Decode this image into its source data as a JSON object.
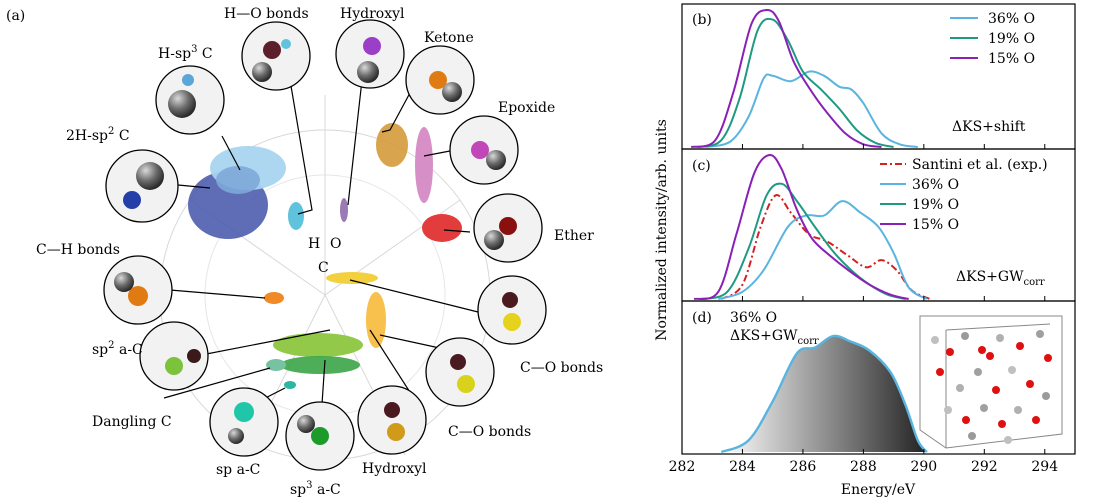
{
  "panel_a": {
    "letter": "(a)",
    "center_labels": {
      "h": "H",
      "o": "O",
      "c": "C"
    },
    "clusters": [
      {
        "name": "H-sp3 C",
        "text": "H-sp",
        "sup": "3",
        "tail": " C",
        "color": "#a9d4ef"
      },
      {
        "name": "2H-sp2 C",
        "text": "2H-sp",
        "sup": "2",
        "tail": " C",
        "color": "#4e5cae"
      },
      {
        "name": "H-O bonds",
        "text": "H—O bonds",
        "color": "#5fc3dd"
      },
      {
        "name": "Hydroxyl",
        "text": "Hydroxyl",
        "color": "#9b7bb5"
      },
      {
        "name": "Ketone",
        "text": "Ketone",
        "color": "#d49a3a"
      },
      {
        "name": "Epoxide",
        "text": "Epoxide",
        "color": "#d58ac4"
      },
      {
        "name": "Ether",
        "text": "Ether",
        "color": "#e03232"
      },
      {
        "name": "C-H bonds",
        "text": "C—H bonds",
        "color": "#f08a26"
      },
      {
        "name": "C-O bonds upper",
        "text": "C—O bonds",
        "color": "#f3d03e"
      },
      {
        "name": "C-O bonds lower",
        "text": "C—O bonds",
        "color": "#f7b93a"
      },
      {
        "name": "Hydroxyl lower",
        "text": "Hydroxyl",
        "color": "#8a4a2a"
      },
      {
        "name": "sp2 a-C",
        "text": "sp",
        "sup": "2",
        "tail": " a-C",
        "color": "#8dc63f"
      },
      {
        "name": "Dangling C",
        "text": "Dangling C",
        "color": "#78c2a4"
      },
      {
        "name": "sp a-C",
        "text": "sp a-C",
        "color": "#2bb8a2"
      },
      {
        "name": "sp3 a-C",
        "text": "sp",
        "sup": "3",
        "tail": " a-C",
        "color": "#3aa447"
      }
    ]
  },
  "panel_b": {
    "letter": "(b)",
    "method_label": "ΔKS+shift",
    "legend": [
      "36% O",
      "19% O",
      "15% O"
    ]
  },
  "panel_c": {
    "letter": "(c)",
    "method_label": "ΔKS+GW",
    "method_sub": "corr",
    "legend": [
      "Santini et al. (exp.)",
      "36% O",
      "19% O",
      "15% O"
    ]
  },
  "panel_d": {
    "letter": "(d)",
    "label_line1": "36% O",
    "label_line2": "ΔKS+GW",
    "label_sub": "corr"
  },
  "colors": {
    "o36": "#5ab4e0",
    "o19": "#1f9a82",
    "o15": "#8a20b5",
    "exp": "#d62020"
  },
  "chart_data": {
    "type": "line",
    "xlabel": "Energy/eV",
    "ylabel": "Normalized intensity/arb. units",
    "xlim": [
      282,
      295
    ],
    "x_ticks": [
      282,
      284,
      286,
      288,
      290,
      292,
      294
    ],
    "panels": [
      {
        "id": "b",
        "series": [
          {
            "name": "36% O",
            "color": "#5ab4e0",
            "x": [
              282.8,
              283.6,
              284.2,
              284.7,
              285.0,
              285.6,
              286.2,
              286.7,
              287.2,
              287.6,
              288.0,
              288.6,
              289.2,
              289.8
            ],
            "y": [
              0.0,
              0.04,
              0.22,
              0.5,
              0.52,
              0.48,
              0.55,
              0.52,
              0.44,
              0.42,
              0.32,
              0.1,
              0.02,
              0.0
            ]
          },
          {
            "name": "19% O",
            "color": "#1f9a82",
            "x": [
              282.5,
              283.3,
              283.9,
              284.5,
              285.0,
              285.5,
              286.0,
              286.6,
              287.2,
              287.8,
              288.4,
              289.0
            ],
            "y": [
              0.0,
              0.05,
              0.35,
              0.85,
              0.93,
              0.78,
              0.55,
              0.42,
              0.28,
              0.12,
              0.03,
              0.0
            ]
          },
          {
            "name": "15% O",
            "color": "#8a20b5",
            "x": [
              282.3,
              283.1,
              283.7,
              284.3,
              284.8,
              285.2,
              285.7,
              286.3,
              286.8,
              287.4,
              288.0,
              288.6
            ],
            "y": [
              0.0,
              0.05,
              0.4,
              0.9,
              1.0,
              0.92,
              0.62,
              0.4,
              0.25,
              0.1,
              0.02,
              0.0
            ]
          }
        ]
      },
      {
        "id": "c",
        "series": [
          {
            "name": "Santini et al. (exp.)",
            "color": "#d62020",
            "dash": true,
            "x": [
              283.3,
              284.0,
              284.6,
              285.1,
              285.6,
              286.2,
              286.8,
              287.5,
              288.1,
              288.6,
              289.1,
              289.6,
              290.2
            ],
            "y": [
              0.0,
              0.1,
              0.5,
              0.72,
              0.6,
              0.45,
              0.4,
              0.3,
              0.22,
              0.27,
              0.2,
              0.06,
              0.0
            ]
          },
          {
            "name": "36% O",
            "color": "#5ab4e0",
            "x": [
              283.2,
              284.0,
              284.7,
              285.5,
              286.1,
              286.7,
              287.3,
              287.9,
              288.5,
              289.0,
              289.5,
              290.1
            ],
            "y": [
              0.0,
              0.05,
              0.2,
              0.5,
              0.58,
              0.58,
              0.68,
              0.6,
              0.5,
              0.32,
              0.08,
              0.0
            ]
          },
          {
            "name": "19% O",
            "color": "#1f9a82",
            "x": [
              282.6,
              283.5,
              284.2,
              284.8,
              285.3,
              285.8,
              286.4,
              287.0,
              287.6,
              288.2,
              288.8,
              289.4
            ],
            "y": [
              0.0,
              0.05,
              0.35,
              0.72,
              0.8,
              0.68,
              0.5,
              0.33,
              0.2,
              0.1,
              0.03,
              0.0
            ]
          },
          {
            "name": "15% O",
            "color": "#8a20b5",
            "x": [
              282.4,
              283.2,
              283.8,
              284.4,
              284.9,
              285.3,
              285.8,
              286.3,
              286.9,
              287.5,
              288.2,
              288.9,
              289.5
            ],
            "y": [
              0.0,
              0.05,
              0.45,
              0.88,
              1.0,
              0.9,
              0.62,
              0.42,
              0.3,
              0.2,
              0.1,
              0.03,
              0.0
            ]
          }
        ]
      },
      {
        "id": "d",
        "series": [
          {
            "name": "36% O",
            "color": "#5ab4e0",
            "filled": true,
            "x": [
              283.3,
              284.2,
              285.0,
              285.8,
              286.4,
              287.0,
              287.6,
              288.2,
              288.9,
              289.4,
              289.8,
              290.1
            ],
            "y": [
              0.0,
              0.08,
              0.35,
              0.68,
              0.72,
              0.8,
              0.76,
              0.7,
              0.55,
              0.32,
              0.08,
              0.0
            ]
          }
        ]
      }
    ]
  }
}
